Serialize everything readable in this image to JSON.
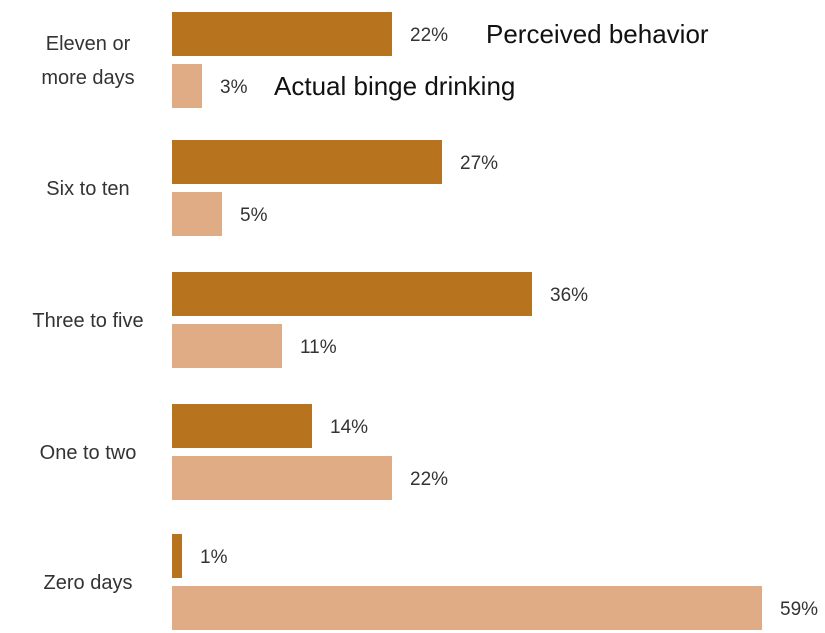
{
  "chart_data": {
    "type": "bar",
    "orientation": "horizontal",
    "categories": [
      [
        "Eleven or",
        "more days"
      ],
      [
        "Six to ten"
      ],
      [
        "Three to five"
      ],
      [
        "One to two"
      ],
      [
        "Zero days"
      ]
    ],
    "series": [
      {
        "name": "Perceived behavior",
        "values": [
          22,
          27,
          36,
          14,
          1
        ],
        "labels": [
          "22%",
          "27%",
          "36%",
          "14%",
          "1%"
        ]
      },
      {
        "name": "Actual binge drinking",
        "values": [
          3,
          5,
          11,
          22,
          59
        ],
        "labels": [
          "3%",
          "5%",
          "11%",
          "22%",
          "59%"
        ]
      }
    ],
    "value_unit": "%",
    "xlim": [
      0,
      59
    ],
    "legend_position": "inline with top bars",
    "grid": false,
    "colors": {
      "perceived": "#b8731f",
      "actual": "#e0ac86"
    }
  }
}
